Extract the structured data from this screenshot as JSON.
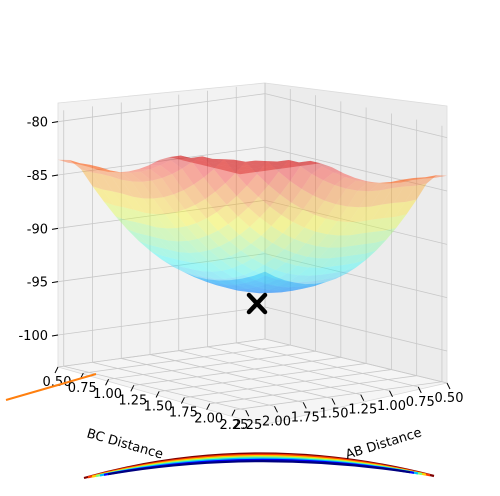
{
  "chart_data": {
    "type": "surface3d",
    "title": "",
    "xlabel": "AB Distance",
    "ylabel": "BC Distance",
    "zlabel": "",
    "ab_ticks": [
      "0.50",
      "0.75",
      "1.00",
      "1.25",
      "1.50",
      "1.75",
      "2.00",
      "2.25"
    ],
    "bc_ticks": [
      "0.50",
      "0.75",
      "1.00",
      "1.25",
      "1.50",
      "1.75",
      "2.00",
      "2.25"
    ],
    "z_ticks": [
      "-80",
      "-85",
      "-90",
      "-95",
      "-100"
    ],
    "zlim": [
      -103,
      -79
    ],
    "xlim": [
      0.5,
      2.3
    ],
    "ylim": [
      0.5,
      2.3
    ],
    "colormap": "jet",
    "surface_alpha": 0.35,
    "saddle_point": {
      "ab": 0.75,
      "bc": 0.75,
      "z": -97.5,
      "marker": "x",
      "color": "#000000"
    },
    "path_color": "#ff7f0e",
    "grid": true
  }
}
